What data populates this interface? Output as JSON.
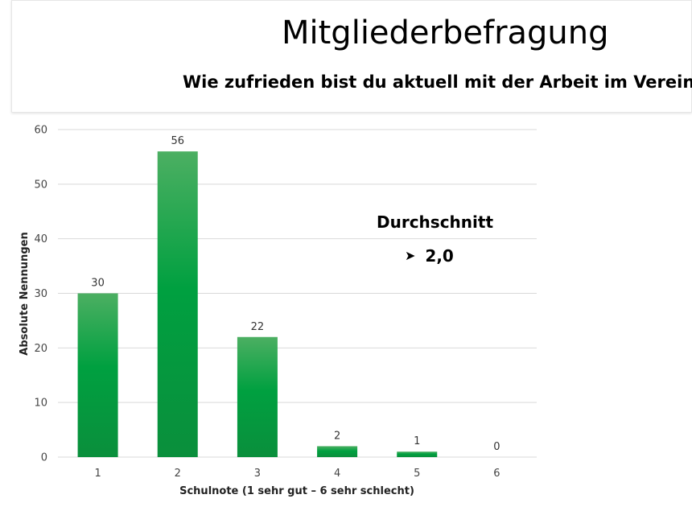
{
  "header": {
    "title": "Mitgliederbefragung",
    "question": "Wie zufrieden bist du aktuell mit der Arbeit im Verein?"
  },
  "average": {
    "label": "Durchschnitt",
    "bullet_icon": "arrowhead-bullet-icon",
    "value": "2,0"
  },
  "colors": {
    "bar_top": "#4caf62",
    "bar_mid": "#00a040",
    "bar_bottom": "#0a8f3c",
    "grid": "#d9d9d9"
  },
  "chart_data": {
    "type": "bar",
    "categories": [
      "1",
      "2",
      "3",
      "4",
      "5",
      "6"
    ],
    "values": [
      30,
      56,
      22,
      2,
      1,
      0
    ],
    "title": "",
    "xlabel": "Schulnote (1 sehr gut – 6 sehr schlecht)",
    "ylabel": "Absolute Nennungen",
    "ylim": [
      0,
      60
    ],
    "yticks": [
      "0",
      "10",
      "20",
      "30",
      "40",
      "50",
      "60"
    ],
    "grid": true,
    "data_labels": true
  }
}
